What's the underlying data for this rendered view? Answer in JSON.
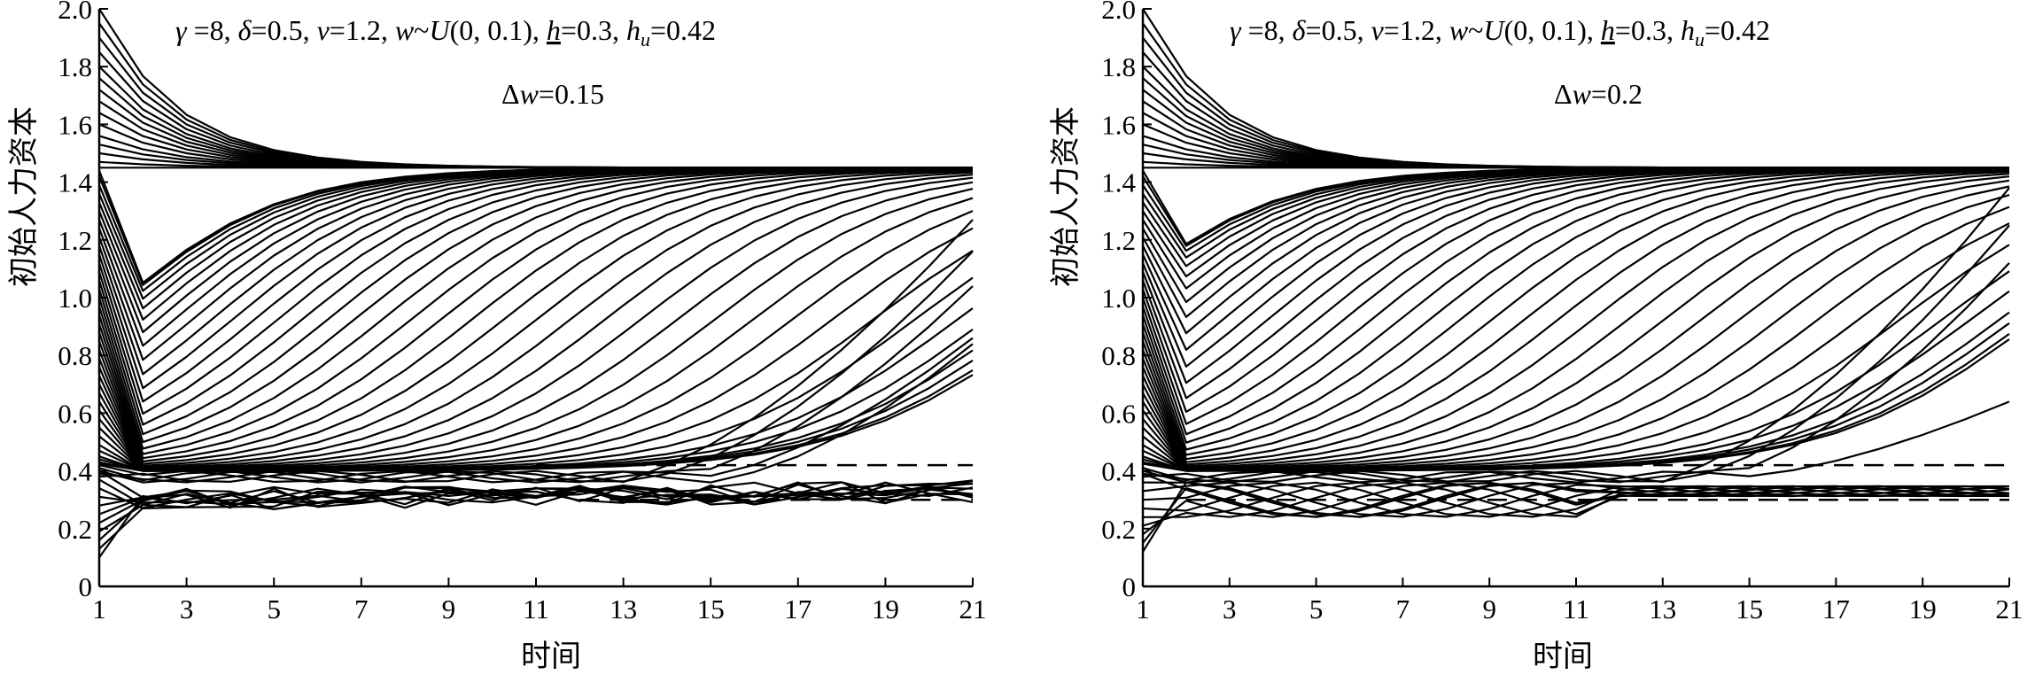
{
  "figure": {
    "panels": [
      {
        "annotation_line1": {
          "gamma_sym": "γ",
          "gamma_val": " =8, ",
          "delta_sym": "δ",
          "delta_val": "=0.5, ",
          "v_sym": "v",
          "v_val": "=1.2, ",
          "w_sym": "w",
          "w_dist": "~",
          "U_sym": "U",
          "U_args": "(0, 0.1), ",
          "h_sym": "h",
          "h_val": "=0.3, ",
          "hu_sym": "h",
          "hu_sub": "u",
          "hu_val": "=0.42"
        },
        "annotation_line2": {
          "dw_prefix": "Δ",
          "dw_sym": "w",
          "dw_val": "=0.15"
        }
      },
      {
        "annotation_line1": {
          "gamma_sym": "γ",
          "gamma_val": " =8, ",
          "delta_sym": "δ",
          "delta_val": "=0.5, ",
          "v_sym": "v",
          "v_val": "=1.2, ",
          "w_sym": "w",
          "w_dist": "~",
          "U_sym": "U",
          "U_args": "(0, 0.1), ",
          "h_sym": "h",
          "h_val": "=0.3, ",
          "hu_sym": "h",
          "hu_sub": "u",
          "hu_val": "=0.42"
        },
        "annotation_line2": {
          "dw_prefix": "Δ",
          "dw_sym": "w",
          "dw_val": "=0.2"
        }
      }
    ]
  },
  "chart_data": [
    {
      "type": "line",
      "xlabel": "时间",
      "ylabel": "初始人力资本",
      "xlim": [
        1,
        21
      ],
      "ylim": [
        0,
        2.0
      ],
      "xticks": [
        "1",
        "3",
        "5",
        "7",
        "9",
        "11",
        "13",
        "15",
        "17",
        "19",
        "21"
      ],
      "yticks": [
        "0",
        "0.2",
        "0.4",
        "0.6",
        "0.8",
        "1.0",
        "1.2",
        "1.4",
        "1.6",
        "1.8",
        "2.0"
      ],
      "steady_state": 1.45,
      "reference_lines": [
        {
          "y": 0.42,
          "style": "dashed"
        },
        {
          "y": 0.3,
          "style": "dashed"
        }
      ],
      "convergent_initials": [
        2.0,
        1.95,
        1.9,
        1.85,
        1.8,
        1.76,
        1.72,
        1.68,
        1.64,
        1.6,
        1.56,
        1.53,
        1.5,
        1.47,
        1.45,
        1.44,
        1.42,
        1.39,
        1.36,
        1.33,
        1.3,
        1.27,
        1.24,
        1.21,
        1.18,
        1.15,
        1.12,
        1.09,
        1.06,
        1.03,
        1.0,
        0.97,
        0.94,
        0.91,
        0.88,
        0.85,
        0.82,
        0.79,
        0.76,
        0.73,
        0.7,
        0.67,
        0.64,
        0.61,
        0.58,
        0.55,
        0.52,
        0.49,
        0.47,
        0.45,
        0.44,
        0.43,
        0.425
      ],
      "trapped_initials": [
        0.1,
        0.13,
        0.16,
        0.19,
        0.22,
        0.25,
        0.28,
        0.31,
        0.34,
        0.37,
        0.4
      ],
      "trapped_band": [
        0.24,
        0.4
      ],
      "late_risers_y21": [
        1.27,
        1.16,
        1.04,
        0.86,
        0.84
      ]
    },
    {
      "type": "line",
      "xlabel": "时间",
      "ylabel": "初始人力资本",
      "xlim": [
        1,
        21
      ],
      "ylim": [
        0,
        2.0
      ],
      "xticks": [
        "1",
        "3",
        "5",
        "7",
        "9",
        "11",
        "13",
        "15",
        "17",
        "19",
        "21"
      ],
      "yticks": [
        "0",
        "0.2",
        "0.4",
        "0.6",
        "0.8",
        "1.0",
        "1.2",
        "1.4",
        "1.6",
        "1.8",
        "2.0"
      ],
      "steady_state": 1.45,
      "reference_lines": [
        {
          "y": 0.42,
          "style": "dashed"
        },
        {
          "y": 0.3,
          "style": "dashed"
        }
      ],
      "convergent_initials": [
        2.0,
        1.95,
        1.9,
        1.85,
        1.8,
        1.76,
        1.72,
        1.68,
        1.64,
        1.6,
        1.56,
        1.53,
        1.5,
        1.47,
        1.45,
        1.44,
        1.42,
        1.39,
        1.36,
        1.33,
        1.3,
        1.27,
        1.24,
        1.21,
        1.18,
        1.15,
        1.12,
        1.09,
        1.06,
        1.03,
        1.0,
        0.97,
        0.94,
        0.91,
        0.88,
        0.85,
        0.82,
        0.79,
        0.76,
        0.73,
        0.7,
        0.67,
        0.64,
        0.61,
        0.58,
        0.55,
        0.52,
        0.49,
        0.47,
        0.45,
        0.44,
        0.43,
        0.425
      ],
      "trapped_initials": [
        0.12,
        0.15,
        0.18,
        0.21,
        0.24,
        0.27,
        0.3,
        0.33,
        0.36,
        0.39
      ],
      "trapped_band": [
        0.26,
        0.42
      ],
      "late_risers_y21": [
        1.38,
        1.25,
        1.12,
        0.64
      ]
    }
  ]
}
